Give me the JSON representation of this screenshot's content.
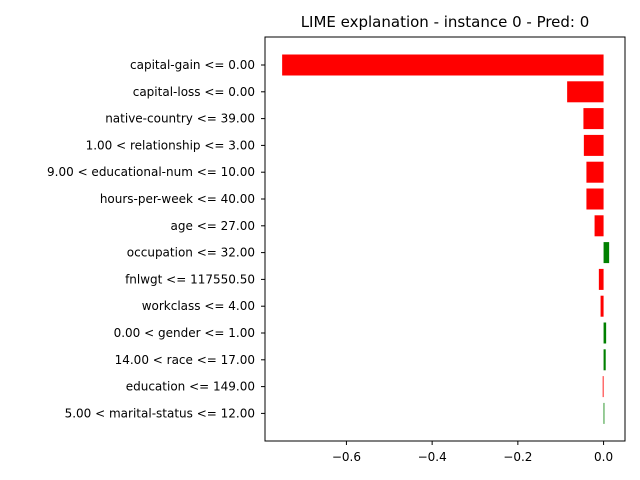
{
  "chart_data": {
    "type": "bar",
    "orientation": "horizontal",
    "title": "LIME explanation - instance 0 - Pred: 0",
    "xlabel": "",
    "ylabel": "",
    "xlim": [
      -0.79,
      0.05
    ],
    "xticks": [
      -0.6,
      -0.4,
      -0.2,
      0.0
    ],
    "xtick_labels": [
      "−0.6",
      "−0.4",
      "−0.2",
      "0.0"
    ],
    "grid": false,
    "legend": "none",
    "colors": {
      "negative": "#ff0000",
      "positive": "#008000"
    },
    "categories": [
      "capital-gain <= 0.00",
      "capital-loss <= 0.00",
      "native-country <= 39.00",
      "1.00 < relationship <= 3.00",
      "9.00 < educational-num <= 10.00",
      "hours-per-week <= 40.00",
      "age <= 27.00",
      "occupation <= 32.00",
      "fnlwgt <= 117550.50",
      "workclass <= 4.00",
      "0.00 < gender <= 1.00",
      "14.00 < race <= 17.00",
      "education <= 149.00",
      "5.00 < marital-status <= 12.00"
    ],
    "values": [
      -0.75,
      -0.085,
      -0.047,
      -0.046,
      -0.04,
      -0.04,
      -0.021,
      0.013,
      -0.011,
      -0.007,
      0.006,
      0.005,
      -0.002,
      0.001
    ]
  }
}
